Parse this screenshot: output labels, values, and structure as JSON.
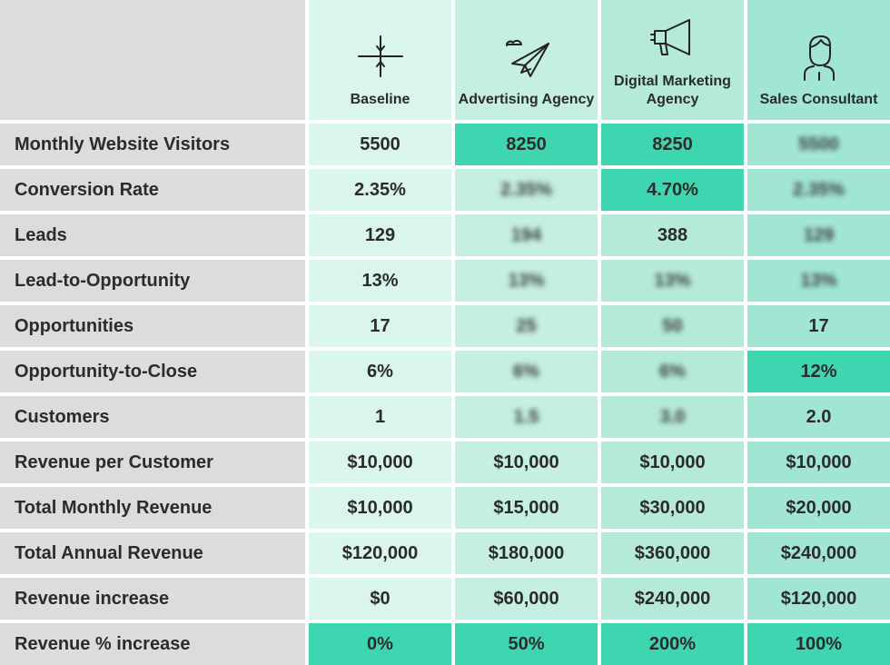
{
  "columns": [
    {
      "name": "Baseline",
      "icon": "crosshair-icon"
    },
    {
      "name": "Advertising Agency",
      "icon": "paper-plane-icon"
    },
    {
      "name": "Digital Marketing Agency",
      "icon": "megaphone-icon"
    },
    {
      "name": "Sales Consultant",
      "icon": "person-icon"
    }
  ],
  "rows": [
    {
      "label": "Monthly Website Visitors",
      "values": [
        "5500",
        "8250",
        "8250",
        "5500"
      ],
      "highlighted": [
        false,
        true,
        true,
        false
      ],
      "blurred": [
        false,
        false,
        false,
        true
      ]
    },
    {
      "label": "Conversion Rate",
      "values": [
        "2.35%",
        "2.35%",
        "4.70%",
        "2.35%"
      ],
      "highlighted": [
        false,
        false,
        true,
        false
      ],
      "blurred": [
        false,
        true,
        false,
        true
      ]
    },
    {
      "label": "Leads",
      "values": [
        "129",
        "194",
        "388",
        "129"
      ],
      "highlighted": [
        false,
        false,
        false,
        false
      ],
      "blurred": [
        false,
        true,
        false,
        true
      ]
    },
    {
      "label": "Lead-to-Opportunity",
      "values": [
        "13%",
        "13%",
        "13%",
        "13%"
      ],
      "highlighted": [
        false,
        false,
        false,
        false
      ],
      "blurred": [
        false,
        true,
        true,
        true
      ]
    },
    {
      "label": "Opportunities",
      "values": [
        "17",
        "25",
        "50",
        "17"
      ],
      "highlighted": [
        false,
        false,
        false,
        false
      ],
      "blurred": [
        false,
        true,
        true,
        false
      ]
    },
    {
      "label": "Opportunity-to-Close",
      "values": [
        "6%",
        "6%",
        "6%",
        "12%"
      ],
      "highlighted": [
        false,
        false,
        false,
        true
      ],
      "blurred": [
        false,
        true,
        true,
        false
      ]
    },
    {
      "label": "Customers",
      "values": [
        "1",
        "1.5",
        "3.0",
        "2.0"
      ],
      "highlighted": [
        false,
        false,
        false,
        false
      ],
      "blurred": [
        false,
        true,
        true,
        false
      ]
    },
    {
      "label": "Revenue per Customer",
      "values": [
        "$10,000",
        "$10,000",
        "$10,000",
        "$10,000"
      ],
      "highlighted": [
        false,
        false,
        false,
        false
      ],
      "blurred": [
        false,
        false,
        false,
        false
      ]
    },
    {
      "label": "Total Monthly Revenue",
      "values": [
        "$10,000",
        "$15,000",
        "$30,000",
        "$20,000"
      ],
      "highlighted": [
        false,
        false,
        false,
        false
      ],
      "blurred": [
        false,
        false,
        false,
        false
      ]
    },
    {
      "label": "Total Annual Revenue",
      "values": [
        "$120,000",
        "$180,000",
        "$360,000",
        "$240,000"
      ],
      "highlighted": [
        false,
        false,
        false,
        false
      ],
      "blurred": [
        false,
        false,
        false,
        false
      ]
    },
    {
      "label": "Revenue increase",
      "values": [
        "$0",
        "$60,000",
        "$240,000",
        "$120,000"
      ],
      "highlighted": [
        false,
        false,
        false,
        false
      ],
      "blurred": [
        false,
        false,
        false,
        false
      ]
    },
    {
      "label": "Revenue % increase",
      "values": [
        "0%",
        "50%",
        "200%",
        "100%"
      ],
      "highlighted": [
        true,
        true,
        true,
        true
      ],
      "blurred": [
        false,
        false,
        false,
        false
      ]
    }
  ],
  "colors": {
    "label_bg": "#dcdcdc",
    "col_baseline": "#daf5ec",
    "col_advertising": "#c4efe2",
    "col_digital": "#b5eadb",
    "col_sales": "#a1e6d3",
    "highlight": "#3ed6b0"
  }
}
